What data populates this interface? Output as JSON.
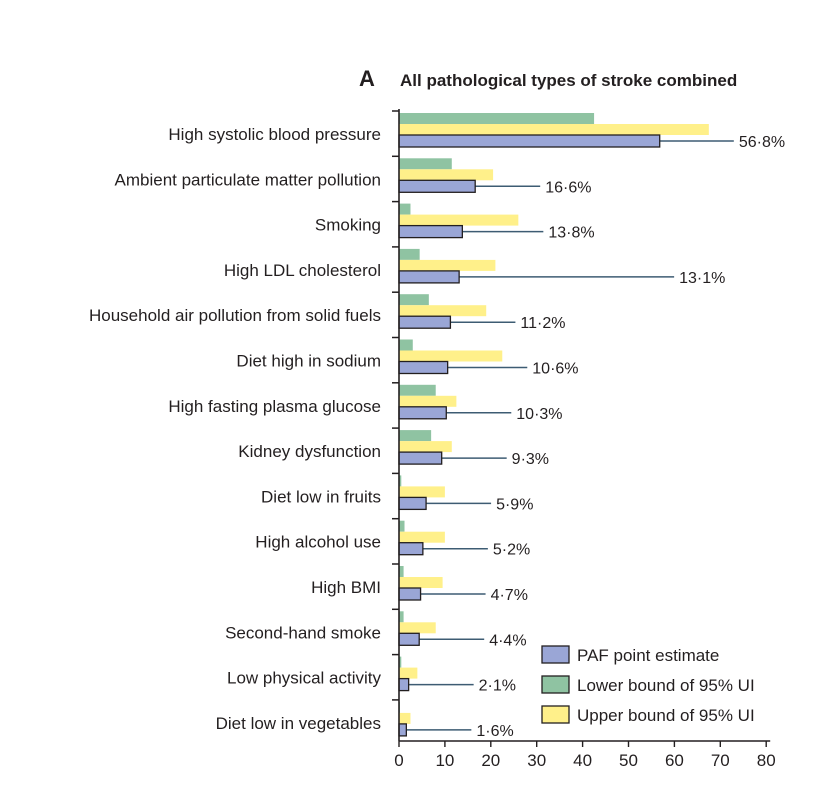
{
  "chart_data": {
    "type": "bar",
    "orientation": "horizontal",
    "panel_label": "A",
    "title": "All pathological types of stroke combined",
    "xlabel": "",
    "ylabel": "",
    "xlim": [
      0,
      80
    ],
    "xticks": [
      "0",
      "10",
      "20",
      "30",
      "40",
      "50",
      "60",
      "70",
      "80"
    ],
    "grid": false,
    "legend_position": "bottom-right",
    "categories": [
      "High systolic blood pressure",
      "Ambient particulate matter pollution",
      "Smoking",
      "High LDL cholesterol",
      "Household air pollution from solid fuels",
      "Diet high in sodium",
      "High fasting plasma glucose",
      "Kidney dysfunction",
      "Diet low in fruits",
      "High alcohol use",
      "High BMI",
      "Second-hand smoke",
      "Low physical activity",
      "Diet low in vegetables"
    ],
    "series": [
      {
        "name": "Lower bound of 95% UI",
        "color": "#8fc3a2",
        "values": [
          42.5,
          11.5,
          2.5,
          4.5,
          6.5,
          3,
          8,
          7,
          0.5,
          1.2,
          1,
          1,
          0.5,
          0.2
        ]
      },
      {
        "name": "Upper bound of 95% UI",
        "color": "#fff08a",
        "values": [
          67.5,
          20.5,
          26,
          21,
          19,
          22.5,
          12.5,
          11.5,
          10,
          10,
          9.5,
          8,
          4,
          2.5
        ]
      },
      {
        "name": "PAF point estimate",
        "color": "#9aa6d6",
        "values": [
          56.8,
          16.6,
          13.8,
          13.1,
          11.2,
          10.6,
          10.3,
          9.3,
          5.9,
          5.2,
          4.7,
          4.4,
          2.1,
          1.6
        ]
      }
    ],
    "value_labels": [
      "56·8%",
      "16·6%",
      "13·8%",
      "13·1%",
      "11·2%",
      "10·6%",
      "10·3%",
      "9·3%",
      "5·9%",
      "5·2%",
      "4·7%",
      "4·4%",
      "2·1%",
      "1·6%"
    ],
    "legend": [
      "PAF point estimate",
      "Lower bound of 95% UI",
      "Upper bound of 95% UI"
    ]
  }
}
